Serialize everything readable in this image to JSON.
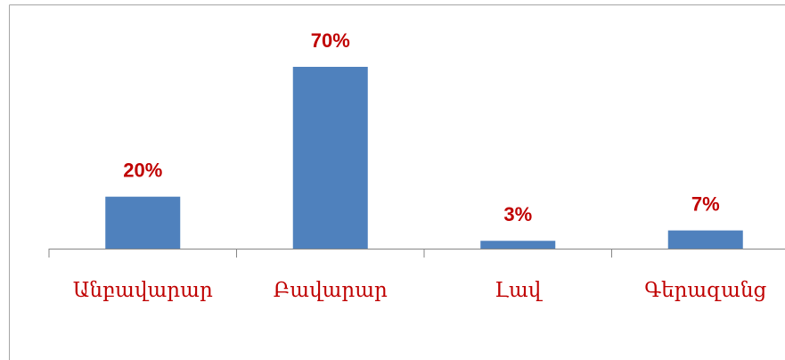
{
  "chart_data": {
    "type": "bar",
    "categories": [
      "Անբավարար",
      "Բավարար",
      "Լավ",
      "Գերազանց"
    ],
    "values": [
      20,
      70,
      3,
      7
    ],
    "value_labels": [
      "20%",
      "70%",
      "3%",
      "7%"
    ],
    "color": "#4f81bd",
    "label_color": "#c00000"
  }
}
